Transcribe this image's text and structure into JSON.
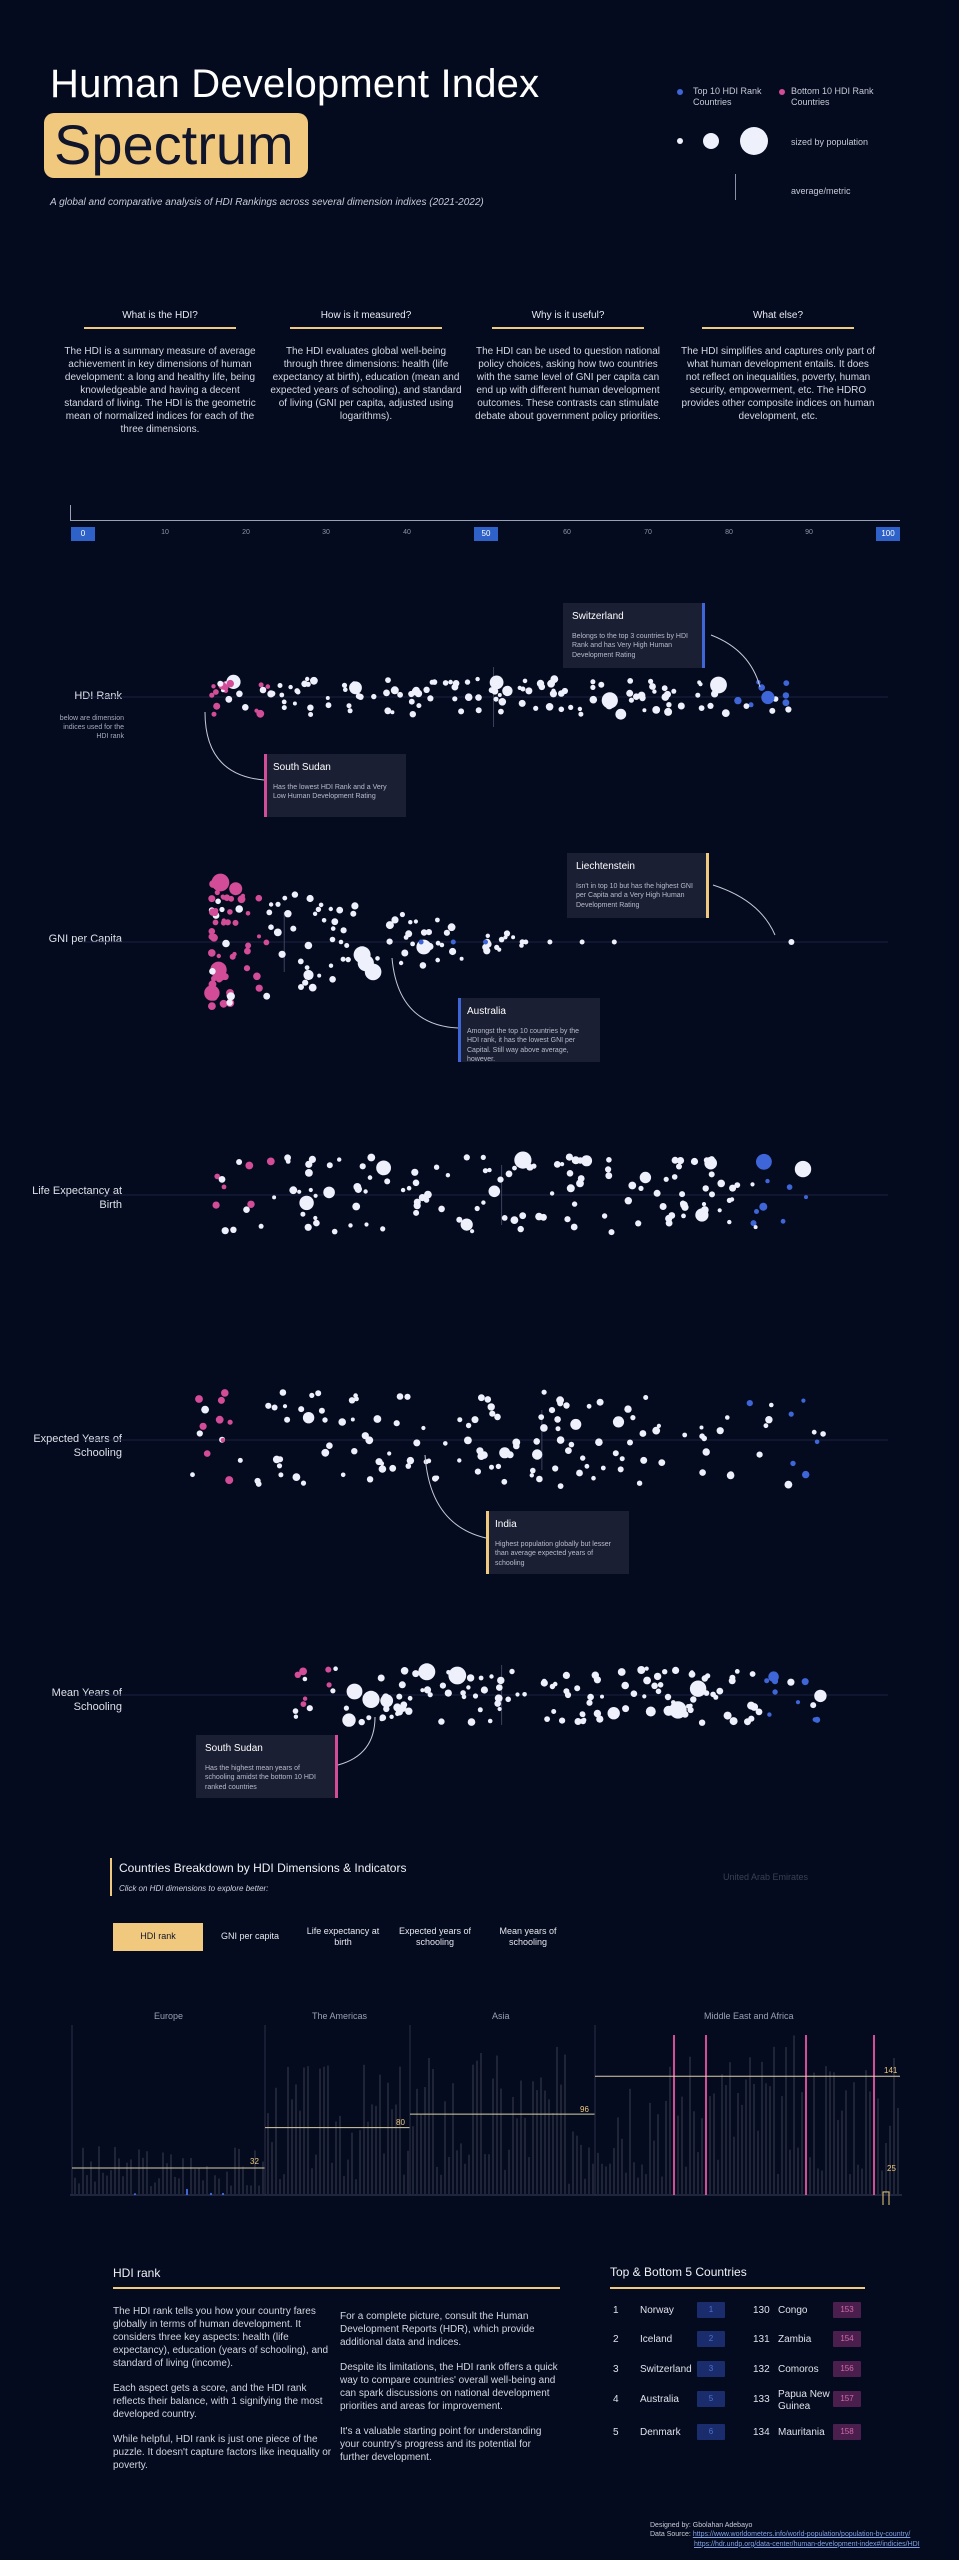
{
  "header": {
    "title_line1": "Human Development Index",
    "title_line2": "Spectrum",
    "subtitle": "A global and comparative analysis of HDI Rankings across several dimension indixes (2021-2022)"
  },
  "legend": {
    "top10": "Top 10 HDI Rank Countries",
    "bottom10": "Bottom 10 HDI Rank Countries",
    "sized": "sized by population",
    "average": "average/metric"
  },
  "colors": {
    "background": "#050b1e",
    "accent": "#f0c97f",
    "top10": "#3f66d8",
    "bottom10": "#d24c97",
    "neutral": "#eef0fb"
  },
  "questions": [
    {
      "title": "What is the HDI?",
      "body": "The HDI is a summary measure of average achievement in key dimensions of human development: a long and healthy life, being knowledgeable and having a decent standard of living. The HDI is the geometric mean of normalized indices for each of the three dimensions."
    },
    {
      "title": "How is it measured?",
      "body": "The HDI evaluates global well-being through three dimensions: health (life expectancy at birth), education (mean and expected years of schooling), and standard of living (GNI per capita, adjusted using logarithms)."
    },
    {
      "title": "Why is it useful?",
      "body": "The HDI can be used to question national policy choices, asking how two countries with the same level of GNI per capita can end up with different human development outcomes. These contrasts can stimulate debate about government policy priorities."
    },
    {
      "title": "What else?",
      "body": "The HDI simplifies and captures only part of what human development entails. It does not reflect on inequalities, poverty, human security, empowerment, etc. The HDRO provides other composite indices on human development, etc."
    }
  ],
  "scale": {
    "start": "0",
    "mid": "50",
    "end": "100",
    "ticks": [
      "10",
      "20",
      "30",
      "40",
      "60",
      "70",
      "80",
      "90"
    ]
  },
  "rows": {
    "hdi_rank": {
      "label": "HDI Rank",
      "note": "below are dimension indices used for the HDI rank"
    },
    "gni": {
      "label": "GNI per Capita"
    },
    "life": {
      "label": "Life Expectancy at Birth"
    },
    "expected": {
      "label": "Expected Years of Schooling"
    },
    "mean": {
      "label": "Mean Years of Schooling"
    }
  },
  "callouts": {
    "switzerland": {
      "title": "Switzerland",
      "body": "Belongs to the top 3 countries by HDI Rank and has Very High Human Development Rating"
    },
    "south_sudan_1": {
      "title": "South Sudan",
      "body": "Has the lowest HDI Rank and a Very Low Human Development Rating"
    },
    "liechtenstein": {
      "title": "Liechtenstein",
      "body": "Isn't in top 10 but has the highest GNI per Capita and a Very High Human Development Rating"
    },
    "australia": {
      "title": "Australia",
      "body": "Amongst the top 10 countries by the HDI rank, it has the lowest GNI per Capital. Still way above average, however."
    },
    "india": {
      "title": "India",
      "body": "Highest population globally but lesser than average expected years of schooling"
    },
    "south_sudan_2": {
      "title": "South Sudan",
      "body": "Has the highest mean years of schooling amidst the bottom 10 HDI ranked countries"
    }
  },
  "breakdown": {
    "title": "Countries Breakdown by HDI Dimensions & Indicators",
    "hint": "Click on HDI dimensions to explore better:",
    "hover_country": "United Arab Emirates",
    "tabs": [
      "HDI rank",
      "GNI per capita",
      "Life expectancy at birth",
      "Expected years of schooling",
      "Mean years of schooling"
    ],
    "regions": [
      "Europe",
      "The Americas",
      "Asia",
      "Middle East and Africa"
    ],
    "averages": [
      "32",
      "80",
      "96",
      "141"
    ],
    "extra_marker": "25"
  },
  "info": {
    "title": "HDI rank",
    "col1": [
      "The HDI rank tells you how your country fares globally in terms of human development. It considers three key aspects: health (life expectancy), education (years of schooling), and standard of living (income).",
      "Each aspect gets a score, and the HDI rank reflects their balance, with 1 signifying the most developed country.",
      "While helpful, HDI rank is just one piece of the puzzle. It doesn't capture factors like inequality or poverty."
    ],
    "col2": [
      "For a complete picture, consult the Human Development Reports (HDR), which provide additional data and indices.",
      "Despite its limitations, the HDI rank offers a quick way to compare countries' overall well-being and can spark discussions on national development priorities and areas for improvement.",
      "It's a valuable starting point for understanding your country's progress and its potential for further development."
    ]
  },
  "top_bottom": {
    "title": "Top & Bottom 5 Countries",
    "rows": [
      {
        "n": "1",
        "top": "Norway",
        "top_rank": "1",
        "bn": "130",
        "bottom": "Congo",
        "bottom_rank": "153"
      },
      {
        "n": "2",
        "top": "Iceland",
        "top_rank": "2",
        "bn": "131",
        "bottom": "Zambia",
        "bottom_rank": "154"
      },
      {
        "n": "3",
        "top": "Switzerland",
        "top_rank": "3",
        "bn": "132",
        "bottom": "Comoros",
        "bottom_rank": "156"
      },
      {
        "n": "4",
        "top": "Australia",
        "top_rank": "5",
        "bn": "133",
        "bottom": "Papua New Guinea",
        "bottom_rank": "157"
      },
      {
        "n": "5",
        "top": "Denmark",
        "top_rank": "6",
        "bn": "134",
        "bottom": "Mauritania",
        "bottom_rank": "158"
      }
    ]
  },
  "credits": {
    "designer": "Designed by: Gbolahan Adebayo",
    "source_label": "Data Source:",
    "source1": "https://www.worldometers.info/world-population/population-by-country/",
    "source2": "https://hdr.undp.org/data-center/human-development-index#/indicies/HDI"
  },
  "chart_data": {
    "type": "scatter",
    "title": "Human Development Index Spectrum",
    "xlim": [
      0,
      100
    ],
    "series": [
      {
        "name": "Top 10 HDI Rank Countries"
      },
      {
        "name": "Bottom 10 HDI Rank Countries"
      }
    ],
    "rows": [
      "HDI Rank",
      "GNI per Capita",
      "Life Expectancy at Birth",
      "Expected Years of Schooling",
      "Mean Years of Schooling"
    ],
    "row_ranges": [
      [
        16,
        88
      ],
      [
        16,
        88
      ],
      [
        16,
        90
      ],
      [
        13,
        92
      ],
      [
        26,
        92
      ]
    ],
    "row_averages": [
      51,
      25,
      52,
      57,
      52
    ],
    "outliers": {
      "GNI per Capita": {
        "country": "Liechtenstein",
        "x": 88
      }
    },
    "bar_averages": {
      "Europe": 32,
      "The Americas": 80,
      "Asia": 96,
      "Middle East and Africa": 141
    }
  }
}
